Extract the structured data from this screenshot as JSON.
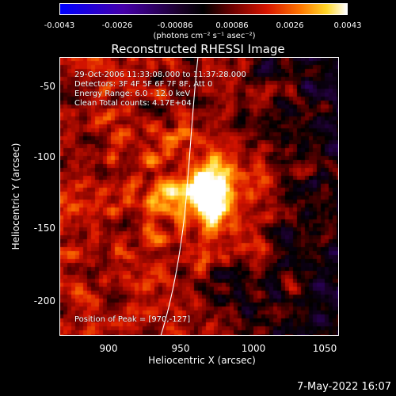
{
  "colorbar": {
    "ticks": [
      "-0.0043",
      "-0.0026",
      "-0.00086",
      "0.00086",
      "0.0026",
      "0.0043"
    ],
    "unit": "(photons cm⁻² s⁻¹ asec⁻²)"
  },
  "title": "Reconstructed RHESSI Image",
  "annotations": {
    "time": "29-Oct-2006 11:33:08.000 to 11:37:28.000",
    "detectors": "Detectors: 3F 4F 5F 6F 7F 8F, Att 0",
    "energy": "Energy Range: 6.0 - 12.0 keV",
    "clean": "Clean     Total counts: 4.17E+04",
    "peak": "Position of Peak = [970,-127]"
  },
  "axes": {
    "xlabel": "Heliocentric X (arcsec)",
    "ylabel": "Heliocentric Y (arcsec)",
    "xticks": [
      "900",
      "950",
      "1000",
      "1050"
    ],
    "yticks": [
      "-50",
      "-100",
      "-150",
      "-200"
    ],
    "xrange": [
      865,
      1059
    ],
    "yrange": [
      -225,
      -32
    ]
  },
  "peak": {
    "x": 970,
    "y": -127
  },
  "footer_date": "7-May-2022 16:07"
}
